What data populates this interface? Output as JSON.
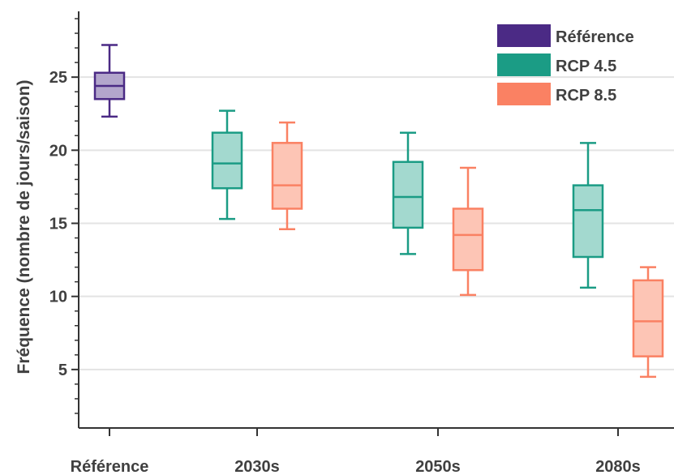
{
  "chart_data": {
    "type": "box",
    "title": "",
    "xlabel": "",
    "ylabel": "Fréquence (nombre de jours/saison)",
    "ylim": [
      1,
      29.5
    ],
    "y_ticks": [
      5,
      10,
      15,
      20,
      25
    ],
    "grid": "horizontal",
    "legend_position": "top-right",
    "categories": [
      "Référence",
      "2030s",
      "2050s",
      "2080s"
    ],
    "series": [
      {
        "name": "Référence",
        "color": "#4b2a85",
        "fill": "#b3a6cc",
        "boxes": [
          {
            "category": "Référence",
            "whisker_low": 22.3,
            "q1": 23.5,
            "median": 24.4,
            "q3": 25.3,
            "whisker_high": 27.2
          }
        ]
      },
      {
        "name": "RCP 4.5",
        "color": "#1b9c85",
        "fill": "#a3d9cf",
        "boxes": [
          {
            "category": "2030s",
            "whisker_low": 15.3,
            "q1": 17.4,
            "median": 19.1,
            "q3": 21.2,
            "whisker_high": 22.7
          },
          {
            "category": "2050s",
            "whisker_low": 12.9,
            "q1": 14.7,
            "median": 16.8,
            "q3": 19.2,
            "whisker_high": 21.2
          },
          {
            "category": "2080s",
            "whisker_low": 10.6,
            "q1": 12.7,
            "median": 15.9,
            "q3": 17.6,
            "whisker_high": 20.5
          }
        ]
      },
      {
        "name": "RCP 8.5",
        "color": "#fa8163",
        "fill": "#fdc5b5",
        "boxes": [
          {
            "category": "2030s",
            "whisker_low": 14.6,
            "q1": 16.0,
            "median": 17.6,
            "q3": 20.5,
            "whisker_high": 21.9
          },
          {
            "category": "2050s",
            "whisker_low": 10.1,
            "q1": 11.8,
            "median": 14.2,
            "q3": 16.0,
            "whisker_high": 18.8
          },
          {
            "category": "2080s",
            "whisker_low": 4.5,
            "q1": 5.9,
            "median": 8.3,
            "q3": 11.1,
            "whisker_high": 12.0
          }
        ]
      }
    ]
  }
}
